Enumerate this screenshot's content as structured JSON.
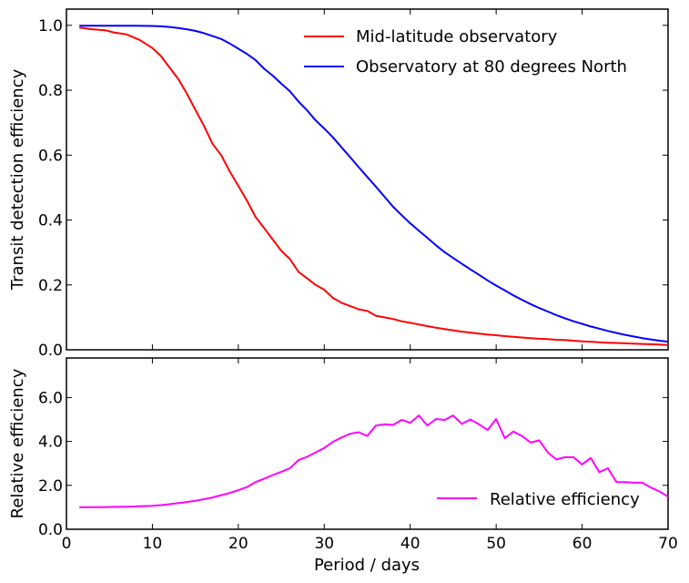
{
  "chart_data": [
    {
      "type": "line",
      "panel": "top",
      "ylabel": "Transit detection efficiency",
      "xlabel": "",
      "xlim": [
        0,
        70
      ],
      "ylim": [
        0,
        1.05
      ],
      "yticks": [
        0.0,
        0.2,
        0.4,
        0.6,
        0.8,
        1.0
      ],
      "ytick_labels": [
        "0.0",
        "0.2",
        "0.4",
        "0.6",
        "0.8",
        "1.0"
      ],
      "legend_position": "top-right",
      "series": [
        {
          "name": "Mid-latitude observatory",
          "color": "#ff0000",
          "x": [
            1.5,
            3,
            4.5,
            5.5,
            7,
            8.5,
            10,
            11,
            12,
            13,
            14,
            15,
            16,
            17,
            18,
            19,
            20,
            21,
            22,
            23,
            24,
            25,
            26,
            27,
            28,
            29,
            30,
            31,
            32,
            33,
            34,
            35,
            36,
            37,
            38,
            39,
            40,
            41,
            42,
            43,
            44,
            45,
            46,
            47,
            48,
            49,
            50,
            51,
            52,
            53,
            54,
            55,
            56,
            57,
            58,
            59,
            60,
            61,
            62,
            63,
            64,
            65,
            66,
            67,
            68,
            69,
            70
          ],
          "values": [
            0.993,
            0.988,
            0.985,
            0.978,
            0.972,
            0.955,
            0.93,
            0.905,
            0.87,
            0.835,
            0.79,
            0.74,
            0.69,
            0.635,
            0.6,
            0.55,
            0.505,
            0.46,
            0.41,
            0.375,
            0.34,
            0.305,
            0.28,
            0.24,
            0.22,
            0.2,
            0.185,
            0.16,
            0.145,
            0.135,
            0.125,
            0.12,
            0.105,
            0.1,
            0.095,
            0.088,
            0.083,
            0.078,
            0.073,
            0.068,
            0.064,
            0.06,
            0.056,
            0.053,
            0.05,
            0.047,
            0.045,
            0.042,
            0.04,
            0.038,
            0.036,
            0.034,
            0.033,
            0.031,
            0.03,
            0.028,
            0.026,
            0.025,
            0.023,
            0.022,
            0.021,
            0.02,
            0.019,
            0.018,
            0.017,
            0.016,
            0.015
          ]
        },
        {
          "name": "Observatory at 80 degrees North",
          "color": "#0000ff",
          "x": [
            1.5,
            5,
            8,
            10,
            11,
            12,
            13,
            14,
            15,
            16,
            17,
            18,
            19,
            20,
            21,
            22,
            23,
            24,
            25,
            26,
            27,
            28,
            29,
            30,
            31,
            32,
            33,
            34,
            35,
            36,
            37,
            38,
            39,
            40,
            41,
            42,
            43,
            44,
            45,
            46,
            47,
            48,
            49,
            50,
            51,
            52,
            53,
            54,
            55,
            56,
            57,
            58,
            59,
            60,
            61,
            62,
            63,
            64,
            65,
            66,
            67,
            68,
            69,
            70
          ],
          "values": [
            0.999,
            0.999,
            0.999,
            0.998,
            0.997,
            0.995,
            0.992,
            0.988,
            0.983,
            0.976,
            0.967,
            0.958,
            0.944,
            0.928,
            0.912,
            0.893,
            0.866,
            0.845,
            0.82,
            0.797,
            0.765,
            0.738,
            0.707,
            0.682,
            0.655,
            0.624,
            0.594,
            0.563,
            0.533,
            0.503,
            0.472,
            0.441,
            0.415,
            0.39,
            0.367,
            0.345,
            0.322,
            0.301,
            0.283,
            0.265,
            0.248,
            0.231,
            0.214,
            0.198,
            0.183,
            0.168,
            0.154,
            0.141,
            0.129,
            0.118,
            0.107,
            0.097,
            0.088,
            0.08,
            0.072,
            0.065,
            0.058,
            0.052,
            0.046,
            0.041,
            0.036,
            0.032,
            0.028,
            0.025
          ]
        }
      ]
    },
    {
      "type": "line",
      "panel": "bottom",
      "ylabel": "Relative efficiency",
      "xlabel": "Period / days",
      "xlim": [
        0,
        70
      ],
      "ylim": [
        0,
        7.8
      ],
      "xticks": [
        0,
        10,
        20,
        30,
        40,
        50,
        60,
        70
      ],
      "xtick_labels": [
        "0",
        "10",
        "20",
        "30",
        "40",
        "50",
        "60",
        "70"
      ],
      "yticks": [
        0.0,
        2.0,
        4.0,
        6.0
      ],
      "ytick_labels": [
        "0.0",
        "2.0",
        "4.0",
        "6.0"
      ],
      "legend_position": "bottom-right",
      "series": [
        {
          "name": "Relative efficiency",
          "color": "#ff00ff",
          "x": [
            1.5,
            3,
            4.5,
            5.5,
            7,
            8.5,
            10,
            11,
            12,
            13,
            14,
            15,
            16,
            17,
            18,
            19,
            20,
            21,
            22,
            23,
            24,
            25,
            26,
            27,
            28,
            29,
            30,
            31,
            32,
            33,
            34,
            35,
            36,
            37,
            38,
            39,
            40,
            41,
            42,
            43,
            44,
            45,
            46,
            47,
            48,
            49,
            50,
            51,
            52,
            53,
            54,
            55,
            56,
            57,
            58,
            59,
            60,
            61,
            62,
            63,
            64,
            65,
            66,
            67,
            68,
            69,
            70
          ],
          "values": [
            1.0,
            1.01,
            1.01,
            1.02,
            1.03,
            1.05,
            1.07,
            1.1,
            1.14,
            1.19,
            1.24,
            1.3,
            1.37,
            1.45,
            1.55,
            1.65,
            1.78,
            1.92,
            2.15,
            2.3,
            2.47,
            2.62,
            2.78,
            3.15,
            3.3,
            3.5,
            3.7,
            3.98,
            4.18,
            4.35,
            4.42,
            4.25,
            4.72,
            4.78,
            4.75,
            4.98,
            4.85,
            5.18,
            4.72,
            5.02,
            4.98,
            5.18,
            4.8,
            5.0,
            4.78,
            4.52,
            5.02,
            4.15,
            4.45,
            4.25,
            3.95,
            4.05,
            3.5,
            3.18,
            3.28,
            3.28,
            2.95,
            3.25,
            2.6,
            2.78,
            2.15,
            2.15,
            2.12,
            2.12,
            1.9,
            1.72,
            1.48
          ]
        }
      ]
    }
  ]
}
